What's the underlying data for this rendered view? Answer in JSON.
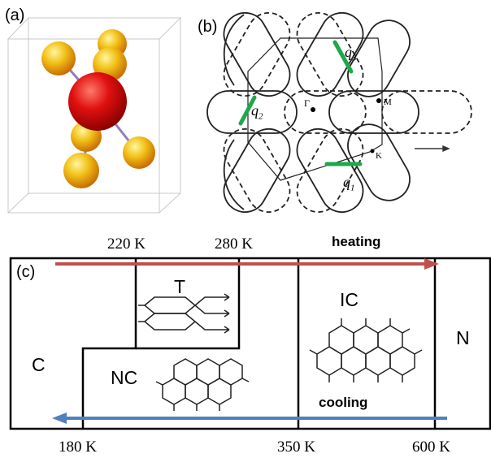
{
  "panels": {
    "a": {
      "label": "(a)"
    },
    "b": {
      "label": "(b)",
      "points": {
        "gamma": "Γ",
        "m": "M",
        "k": "K"
      },
      "vectors": {
        "q1": "q",
        "q1_sub": "1",
        "q2": "q",
        "q2_sub": "2",
        "q3": "q",
        "q3_sub": "3"
      }
    },
    "c": {
      "label": "(c)"
    }
  },
  "phase_diagram": {
    "heating_label": "heating",
    "cooling_label": "cooling",
    "phases": {
      "c": "C",
      "nc": "NC",
      "t": "T",
      "ic": "IC",
      "n": "N"
    },
    "temperatures": {
      "t220": "220 K",
      "t280": "280 K",
      "t180": "180 K",
      "t350": "350 K",
      "t600": "600 K"
    }
  },
  "colors": {
    "sphere_center": "#e01010",
    "sphere_outer": "#f2b21a",
    "heating_arrow": "#c0504d",
    "cooling_arrow": "#4f81bd",
    "q_vector": "#1fa84a"
  }
}
